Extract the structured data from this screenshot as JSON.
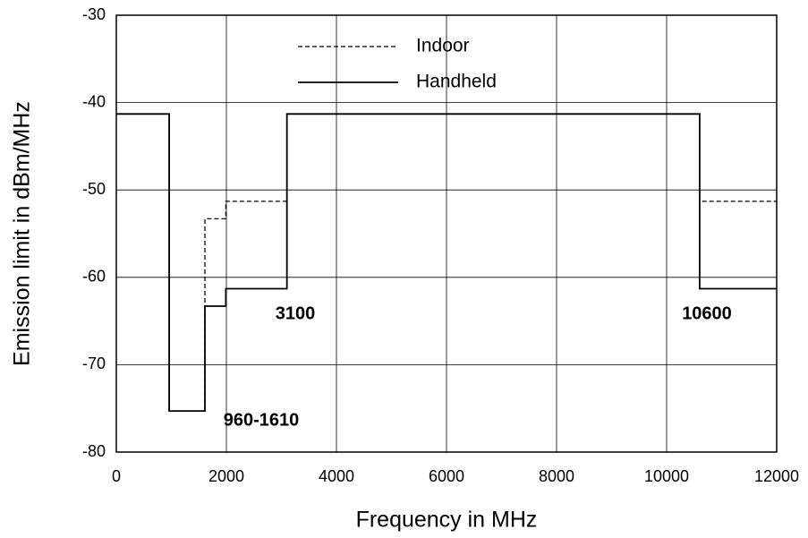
{
  "chart_data": {
    "type": "line",
    "xlabel": "Frequency in MHz",
    "ylabel": "Emission limit in dBm/MHz",
    "x": [
      0,
      960,
      960,
      1610,
      1610,
      1990,
      1990,
      3100,
      3100,
      10600,
      10600,
      12000
    ],
    "series": [
      {
        "name": "Indoor",
        "color": "#000000",
        "dash": true,
        "values": [
          -41.3,
          -41.3,
          -75.3,
          -75.3,
          -53.3,
          -53.3,
          -51.3,
          -51.3,
          -41.3,
          -41.3,
          -51.3,
          -51.3
        ]
      },
      {
        "name": "Handheld",
        "color": "#000000",
        "dash": false,
        "values": [
          -41.3,
          -41.3,
          -75.3,
          -75.3,
          -63.3,
          -63.3,
          -61.3,
          -61.3,
          -41.3,
          -41.3,
          -61.3,
          -61.3
        ]
      }
    ],
    "xlim": [
      0,
      12000
    ],
    "xticks": [
      0,
      2000,
      4000,
      6000,
      8000,
      10000,
      12000
    ],
    "ylim": [
      -80,
      -30
    ],
    "yticks": [
      -80,
      -70,
      -60,
      -50,
      -40,
      -30
    ],
    "grid": true,
    "legend": "top",
    "annotations": [
      "3100",
      "10600",
      "960-1610"
    ]
  }
}
